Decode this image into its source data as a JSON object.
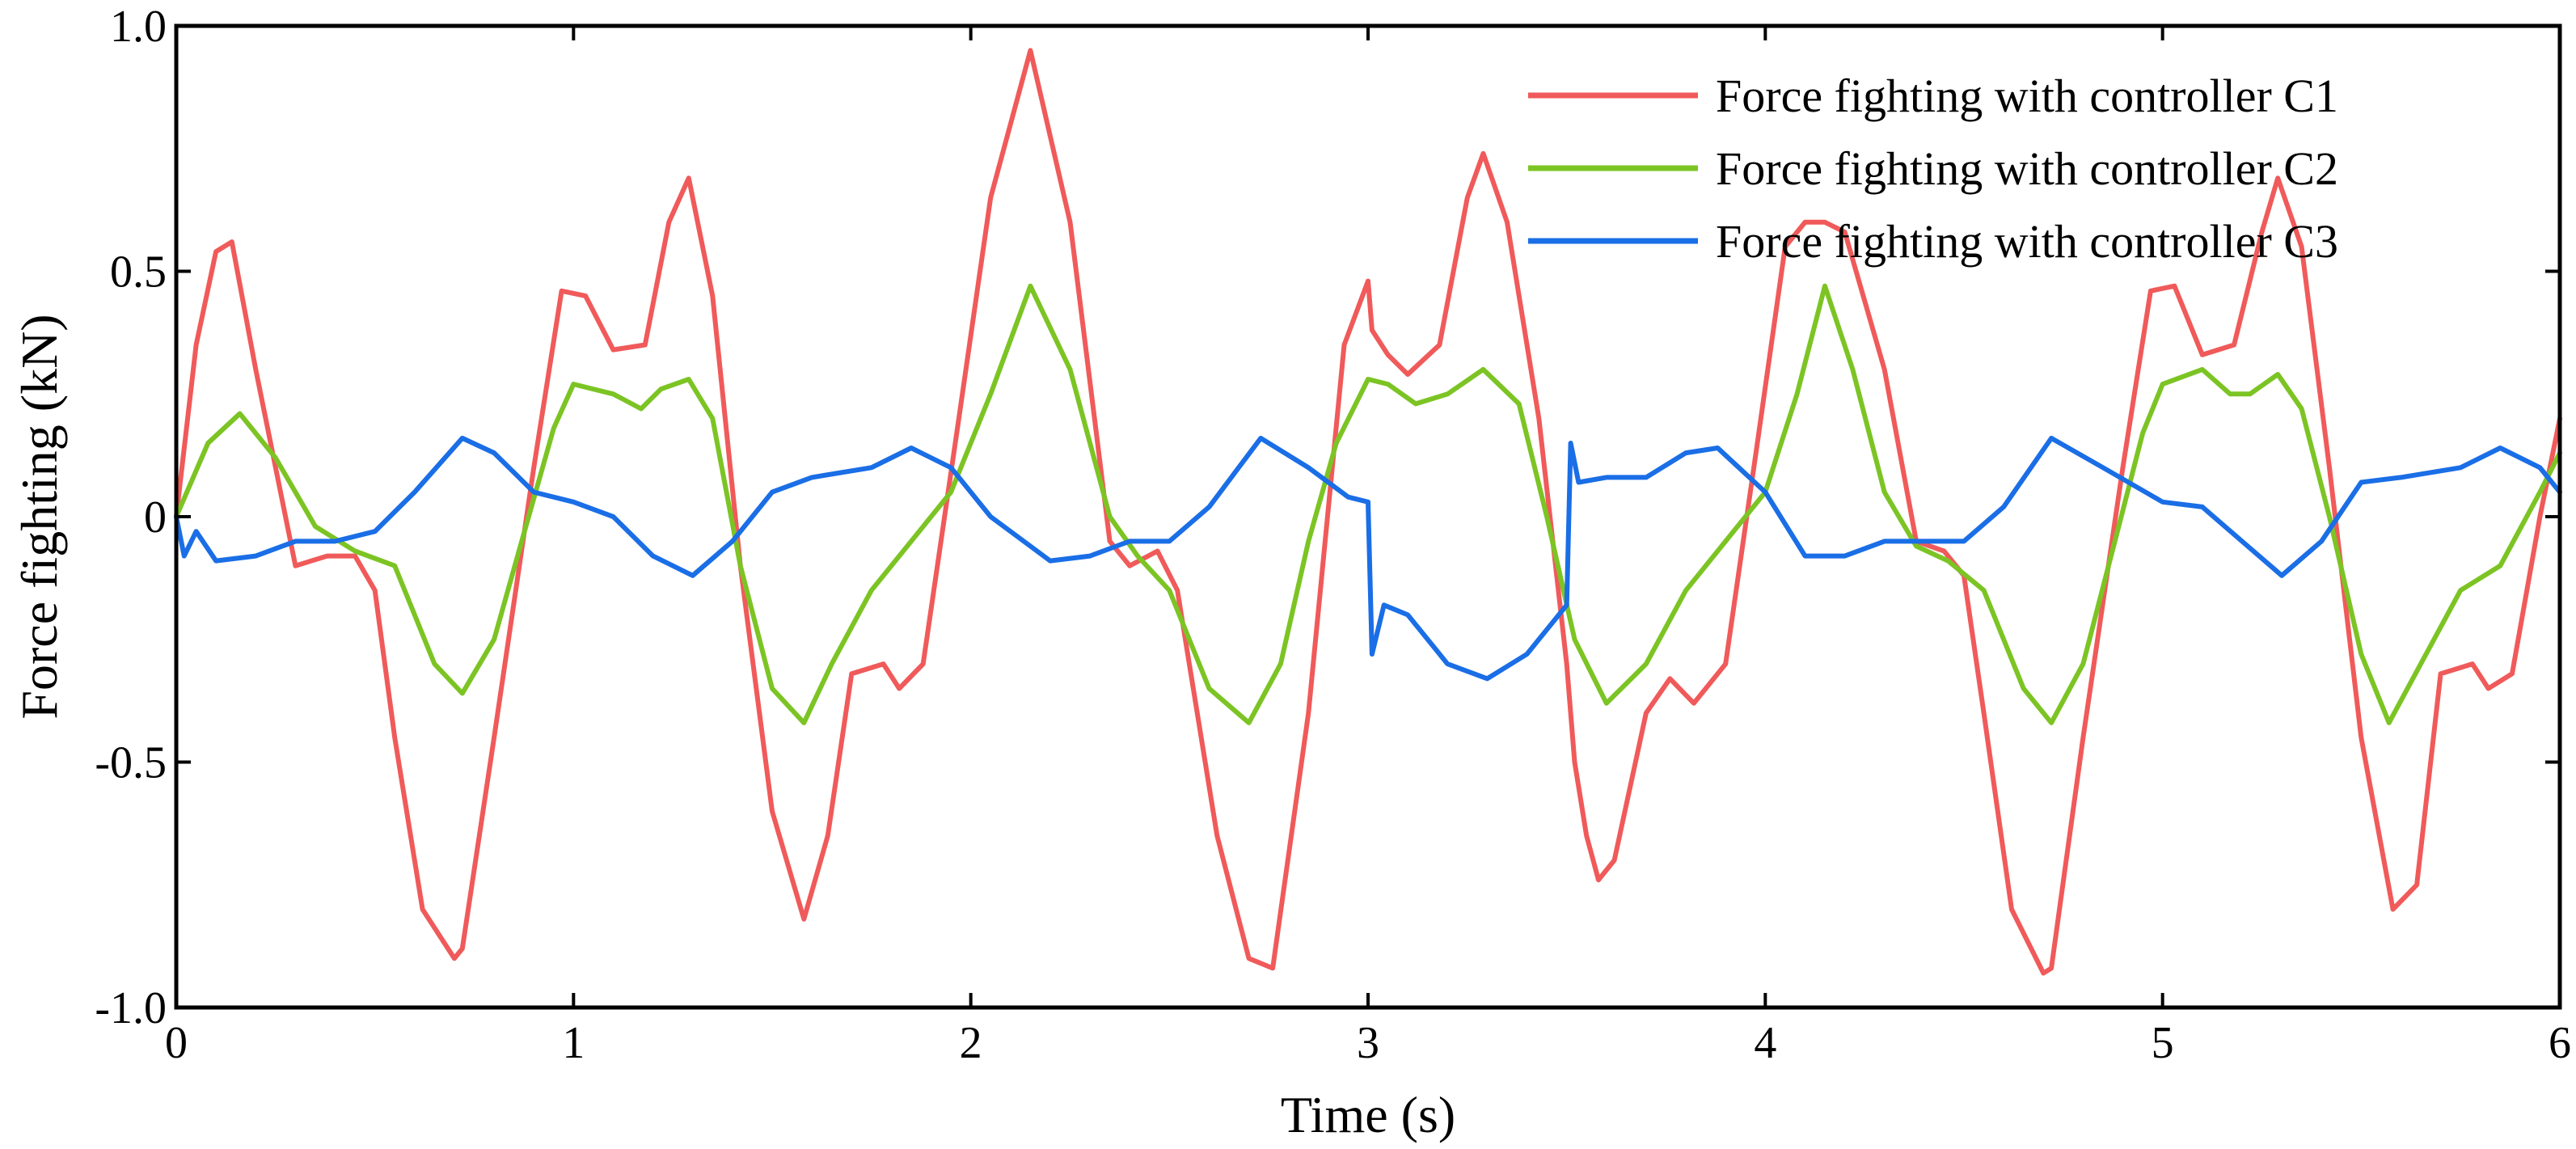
{
  "chart_data": {
    "type": "line",
    "title": "",
    "xlabel": "Time (s)",
    "ylabel": "Force fighting (kN)",
    "xlim": [
      0,
      6
    ],
    "ylim": [
      -1.0,
      1.0
    ],
    "xticks": [
      0,
      1,
      2,
      3,
      4,
      5,
      6
    ],
    "xtick_labels": [
      "0",
      "1",
      "2",
      "3",
      "4",
      "5",
      "6"
    ],
    "yticks": [
      -1.0,
      -0.5,
      0,
      0.5,
      1.0
    ],
    "ytick_labels": [
      "-1.0",
      "-0.5",
      "0",
      "0.5",
      "1.0"
    ],
    "grid": false,
    "legend_position": "top-right",
    "series": [
      {
        "name": "Force fighting with controller C1",
        "color": "#f05a5a",
        "x": [
          0,
          0.05,
          0.1,
          0.14,
          0.2,
          0.3,
          0.38,
          0.45,
          0.5,
          0.55,
          0.62,
          0.7,
          0.72,
          0.8,
          0.9,
          0.97,
          1.03,
          1.1,
          1.18,
          1.24,
          1.29,
          1.35,
          1.42,
          1.5,
          1.58,
          1.64,
          1.7,
          1.78,
          1.82,
          1.88,
          1.97,
          2.05,
          2.15,
          2.25,
          2.35,
          2.4,
          2.47,
          2.52,
          2.62,
          2.7,
          2.76,
          2.85,
          2.94,
          3.0,
          3.01,
          3.05,
          3.1,
          3.18,
          3.25,
          3.29,
          3.35,
          3.43,
          3.5,
          3.52,
          3.55,
          3.58,
          3.62,
          3.7,
          3.76,
          3.82,
          3.9,
          3.98,
          4.05,
          4.1,
          4.15,
          4.2,
          4.3,
          4.38,
          4.45,
          4.5,
          4.55,
          4.62,
          4.7,
          4.72,
          4.8,
          4.9,
          4.97,
          5.03,
          5.1,
          5.18,
          5.25,
          5.29,
          5.35,
          5.42,
          5.5,
          5.58,
          5.64,
          5.7,
          5.78,
          5.82,
          5.88,
          5.95,
          6.0
        ],
        "values": [
          0.0,
          0.35,
          0.54,
          0.56,
          0.3,
          -0.1,
          -0.08,
          -0.08,
          -0.15,
          -0.45,
          -0.8,
          -0.9,
          -0.88,
          -0.45,
          0.1,
          0.46,
          0.45,
          0.34,
          0.35,
          0.6,
          0.69,
          0.45,
          -0.1,
          -0.6,
          -0.82,
          -0.65,
          -0.32,
          -0.3,
          -0.35,
          -0.3,
          0.2,
          0.65,
          0.95,
          0.6,
          -0.05,
          -0.1,
          -0.07,
          -0.15,
          -0.65,
          -0.9,
          -0.92,
          -0.4,
          0.35,
          0.48,
          0.38,
          0.33,
          0.29,
          0.35,
          0.65,
          0.74,
          0.6,
          0.2,
          -0.3,
          -0.5,
          -0.65,
          -0.74,
          -0.7,
          -0.4,
          -0.33,
          -0.38,
          -0.3,
          0.15,
          0.55,
          0.6,
          0.6,
          0.58,
          0.3,
          -0.05,
          -0.07,
          -0.12,
          -0.4,
          -0.8,
          -0.93,
          -0.92,
          -0.45,
          0.1,
          0.46,
          0.47,
          0.33,
          0.35,
          0.58,
          0.69,
          0.55,
          0.1,
          -0.45,
          -0.8,
          -0.75,
          -0.32,
          -0.3,
          -0.35,
          -0.32,
          0.0,
          0.2
        ]
      },
      {
        "name": "Force fighting with controller C2",
        "color": "#7cc424",
        "x": [
          0,
          0.08,
          0.16,
          0.25,
          0.35,
          0.45,
          0.55,
          0.65,
          0.72,
          0.8,
          0.88,
          0.95,
          1.0,
          1.1,
          1.17,
          1.22,
          1.29,
          1.35,
          1.42,
          1.5,
          1.58,
          1.65,
          1.75,
          1.85,
          1.95,
          2.05,
          2.15,
          2.25,
          2.35,
          2.42,
          2.5,
          2.6,
          2.7,
          2.78,
          2.85,
          2.92,
          3.0,
          3.05,
          3.12,
          3.2,
          3.29,
          3.38,
          3.45,
          3.52,
          3.6,
          3.7,
          3.8,
          3.9,
          4.0,
          4.08,
          4.15,
          4.22,
          4.3,
          4.38,
          4.46,
          4.55,
          4.65,
          4.72,
          4.8,
          4.88,
          4.95,
          5.0,
          5.1,
          5.17,
          5.22,
          5.29,
          5.35,
          5.42,
          5.5,
          5.57,
          5.65,
          5.75,
          5.85,
          5.95,
          6.0
        ],
        "values": [
          0.0,
          0.15,
          0.21,
          0.12,
          -0.02,
          -0.07,
          -0.1,
          -0.3,
          -0.36,
          -0.25,
          -0.02,
          0.18,
          0.27,
          0.25,
          0.22,
          0.26,
          0.28,
          0.2,
          -0.1,
          -0.35,
          -0.42,
          -0.3,
          -0.15,
          -0.05,
          0.05,
          0.25,
          0.47,
          0.3,
          0.0,
          -0.08,
          -0.15,
          -0.35,
          -0.42,
          -0.3,
          -0.05,
          0.15,
          0.28,
          0.27,
          0.23,
          0.25,
          0.3,
          0.23,
          0.0,
          -0.25,
          -0.38,
          -0.3,
          -0.15,
          -0.05,
          0.05,
          0.25,
          0.47,
          0.3,
          0.05,
          -0.06,
          -0.09,
          -0.15,
          -0.35,
          -0.42,
          -0.3,
          -0.05,
          0.17,
          0.27,
          0.3,
          0.25,
          0.25,
          0.29,
          0.22,
          0.0,
          -0.28,
          -0.42,
          -0.3,
          -0.15,
          -0.1,
          0.05,
          0.13
        ]
      },
      {
        "name": "Force fighting with controller C3",
        "color": "#1a6ee6",
        "x": [
          0,
          0.02,
          0.05,
          0.1,
          0.2,
          0.3,
          0.4,
          0.5,
          0.6,
          0.72,
          0.8,
          0.9,
          1.0,
          1.1,
          1.2,
          1.3,
          1.4,
          1.5,
          1.6,
          1.75,
          1.85,
          1.95,
          2.05,
          2.2,
          2.3,
          2.4,
          2.5,
          2.6,
          2.73,
          2.85,
          2.95,
          3.0,
          3.01,
          3.04,
          3.1,
          3.2,
          3.3,
          3.4,
          3.5,
          3.51,
          3.53,
          3.6,
          3.7,
          3.8,
          3.88,
          4.0,
          4.1,
          4.2,
          4.3,
          4.4,
          4.5,
          4.6,
          4.72,
          4.85,
          5.0,
          5.1,
          5.2,
          5.3,
          5.4,
          5.5,
          5.6,
          5.75,
          5.85,
          5.95,
          6.0
        ],
        "values": [
          0.0,
          -0.08,
          -0.03,
          -0.09,
          -0.08,
          -0.05,
          -0.05,
          -0.03,
          0.05,
          0.16,
          0.13,
          0.05,
          0.03,
          0.0,
          -0.08,
          -0.12,
          -0.05,
          0.05,
          0.08,
          0.1,
          0.14,
          0.1,
          0.0,
          -0.09,
          -0.08,
          -0.05,
          -0.05,
          0.02,
          0.16,
          0.1,
          0.04,
          0.03,
          -0.28,
          -0.18,
          -0.2,
          -0.3,
          -0.33,
          -0.28,
          -0.18,
          0.15,
          0.07,
          0.08,
          0.08,
          0.13,
          0.14,
          0.05,
          -0.08,
          -0.08,
          -0.05,
          -0.05,
          -0.05,
          0.02,
          0.16,
          0.1,
          0.03,
          0.02,
          -0.05,
          -0.12,
          -0.05,
          0.07,
          0.08,
          0.1,
          0.14,
          0.1,
          0.05
        ]
      }
    ]
  }
}
